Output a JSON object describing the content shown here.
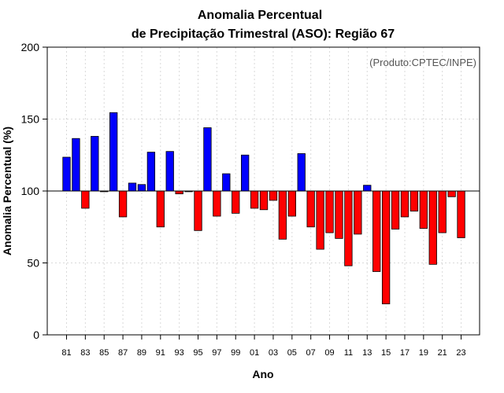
{
  "chart_data": {
    "type": "bar",
    "title": "Anomalia Percentual",
    "subtitle": "de Precipitação Trimestral (ASO): Região 67",
    "xlabel": "Ano",
    "ylabel": "Anomalia Percentual (%)",
    "credit": "(Produto:CPTEC/INPE)",
    "ylim": [
      0,
      200
    ],
    "yticks": [
      0,
      50,
      100,
      150,
      200
    ],
    "baseline": 100,
    "grid": true,
    "colors": {
      "above": "#0000ff",
      "below": "#ff0000",
      "outline": "#000000",
      "grid": "#d9d9d9"
    },
    "xtick_labels": [
      "81",
      "83",
      "85",
      "87",
      "89",
      "91",
      "93",
      "95",
      "97",
      "99",
      "01",
      "03",
      "05",
      "07",
      "09",
      "11",
      "13",
      "15",
      "17",
      "19",
      "21",
      "23"
    ],
    "categories": [
      1981,
      1982,
      1983,
      1984,
      1985,
      1986,
      1987,
      1988,
      1989,
      1990,
      1991,
      1992,
      1993,
      1994,
      1995,
      1996,
      1997,
      1998,
      1999,
      2000,
      2001,
      2002,
      2003,
      2004,
      2005,
      2006,
      2007,
      2008,
      2009,
      2010,
      2011,
      2012,
      2013,
      2014,
      2015,
      2016,
      2017,
      2018,
      2019,
      2020,
      2021,
      2022,
      2023
    ],
    "values": [
      123.5,
      136.5,
      88,
      138,
      99.5,
      154.5,
      82,
      105.5,
      104.5,
      127,
      75,
      127.5,
      98,
      99.5,
      72.5,
      144,
      82.5,
      112,
      84.5,
      125,
      88,
      87,
      93.5,
      66.5,
      82.5,
      126,
      75,
      59.5,
      71,
      67,
      48,
      70,
      104,
      44,
      21.5,
      73.5,
      82,
      86,
      74,
      49,
      71,
      96,
      67.5
    ]
  }
}
